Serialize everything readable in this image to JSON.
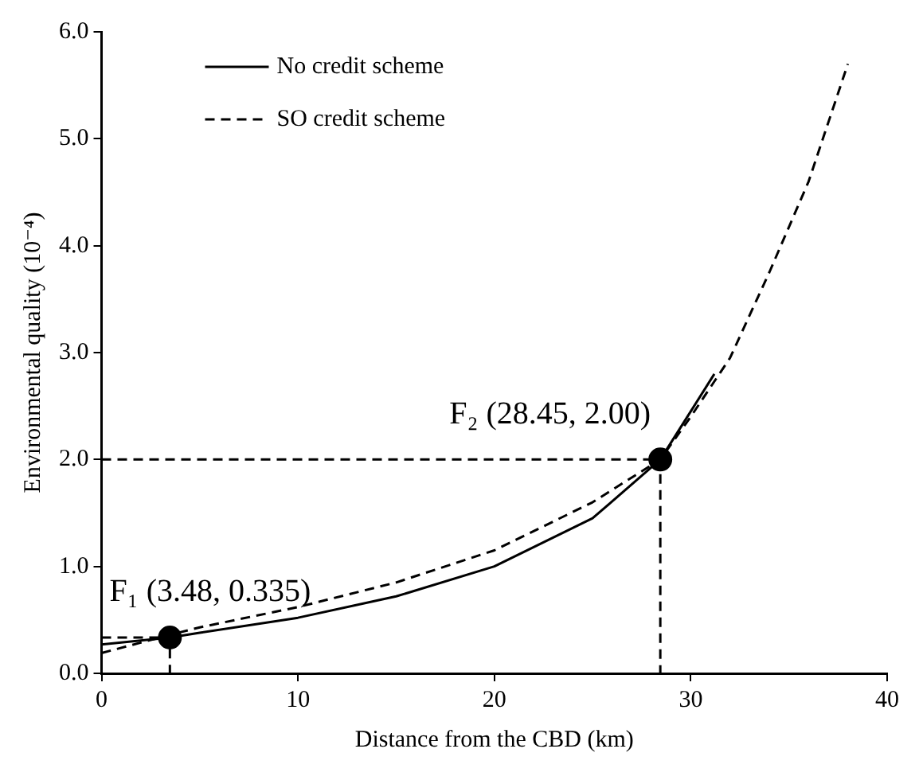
{
  "chart_data": {
    "type": "line",
    "xlabel": "Distance from the CBD (km)",
    "ylabel": "Environmental quality (10⁻⁴)",
    "xlim": [
      0,
      40
    ],
    "xticks": [
      0,
      10,
      20,
      30,
      40
    ],
    "ylim": [
      0,
      6
    ],
    "yticks": [
      {
        "value": 0,
        "label": "0.0"
      },
      {
        "value": 1,
        "label": "1.0"
      },
      {
        "value": 2,
        "label": "2.0"
      },
      {
        "value": 3,
        "label": "3.0"
      },
      {
        "value": 4,
        "label": "4.0"
      },
      {
        "value": 5,
        "label": "5.0"
      },
      {
        "value": 6,
        "label": "6.0"
      }
    ],
    "grid": false,
    "legend": "top left",
    "marker": "none",
    "series": [
      {
        "name": "No credit scheme",
        "color": "#000000",
        "line_style": "solid",
        "x": [
          0,
          3.48,
          5,
          10,
          15,
          20,
          25,
          28.45,
          30,
          31.2
        ],
        "values": [
          0.27,
          0.335,
          0.38,
          0.52,
          0.72,
          1.0,
          1.45,
          2.0,
          2.45,
          2.8
        ]
      },
      {
        "name": "SO credit scheme",
        "color": "#000000",
        "line_style": "dashed",
        "x": [
          0,
          3.48,
          5,
          10,
          15,
          20,
          25,
          28.45,
          30,
          32,
          34,
          36,
          38
        ],
        "values": [
          0.19,
          0.36,
          0.43,
          0.62,
          0.85,
          1.15,
          1.6,
          2.0,
          2.4,
          2.95,
          3.75,
          4.6,
          5.7
        ]
      },
      {
        "color": "#000000",
        "line_style": "dashed",
        "x": [
          0,
          28.45,
          28.45
        ],
        "values": [
          2.0,
          2.0,
          0
        ]
      },
      {
        "color": "#000000",
        "line_style": "dashed",
        "x": [
          0,
          3.48,
          3.48
        ],
        "values": [
          0.335,
          0.335,
          0
        ]
      },
      {
        "type": "scatter",
        "color": "#000000",
        "marker": "circle",
        "x": [
          3.48,
          28.45
        ],
        "values": [
          0.335,
          2.0
        ]
      }
    ],
    "annotations": [
      {
        "text": "F₁ (3.48, 0.335)",
        "x": 3.48,
        "y": 0.335
      },
      {
        "text": "F₂ (28.45, 2.00)",
        "x": 28.45,
        "y": 2.0
      }
    ]
  }
}
